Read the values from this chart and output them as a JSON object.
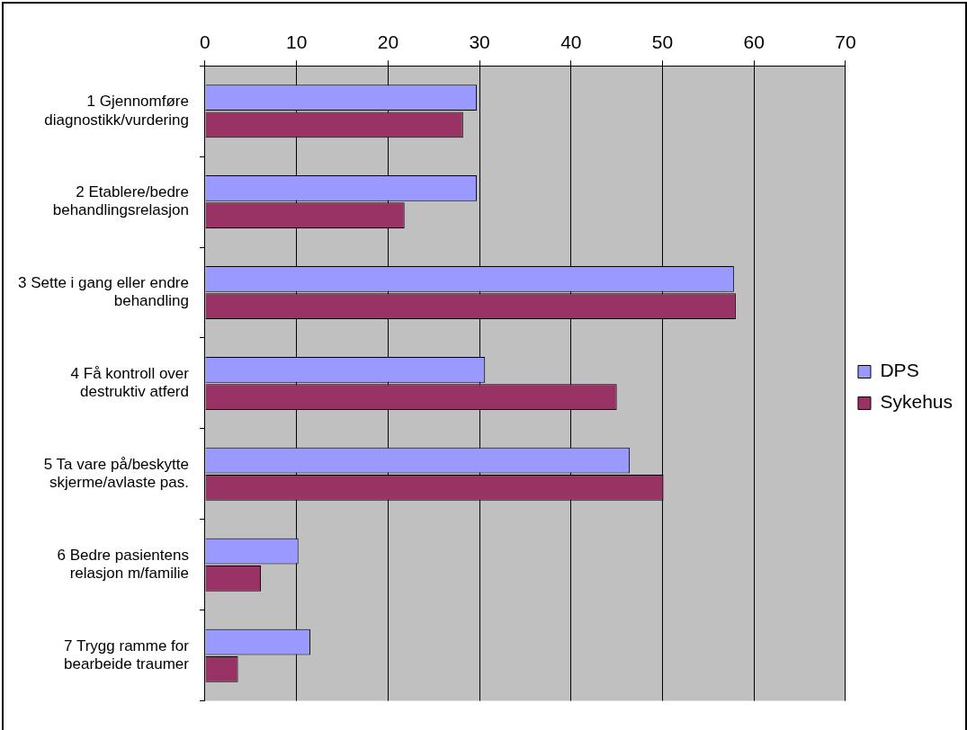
{
  "chart_data": {
    "type": "bar",
    "orientation": "horizontal",
    "categories": [
      "1 Gjennomføre diagnostikk/vurdering",
      "2 Etablere/bedre behandlingsrelasjon",
      "3 Sette i gang eller endre behandling",
      "4 Få kontroll over destruktiv atferd",
      "5 Ta vare på/beskytte skjerme/avlaste pas.",
      "6 Bedre pasientens relasjon m/familie",
      "7 Trygg ramme for bearbeide traumer"
    ],
    "series": [
      {
        "name": "DPS",
        "color": "#9999ff",
        "values": [
          29.7,
          29.7,
          57.8,
          30.6,
          46.4,
          10.2,
          11.5
        ]
      },
      {
        "name": "Sykehus",
        "color": "#993366",
        "values": [
          28.2,
          21.8,
          58.0,
          45.0,
          50.1,
          6.1,
          3.6
        ]
      }
    ],
    "xlim": [
      0,
      70
    ],
    "xticks": [
      0,
      10,
      20,
      30,
      40,
      50,
      60,
      70
    ],
    "grid": "x",
    "legend": "right"
  }
}
